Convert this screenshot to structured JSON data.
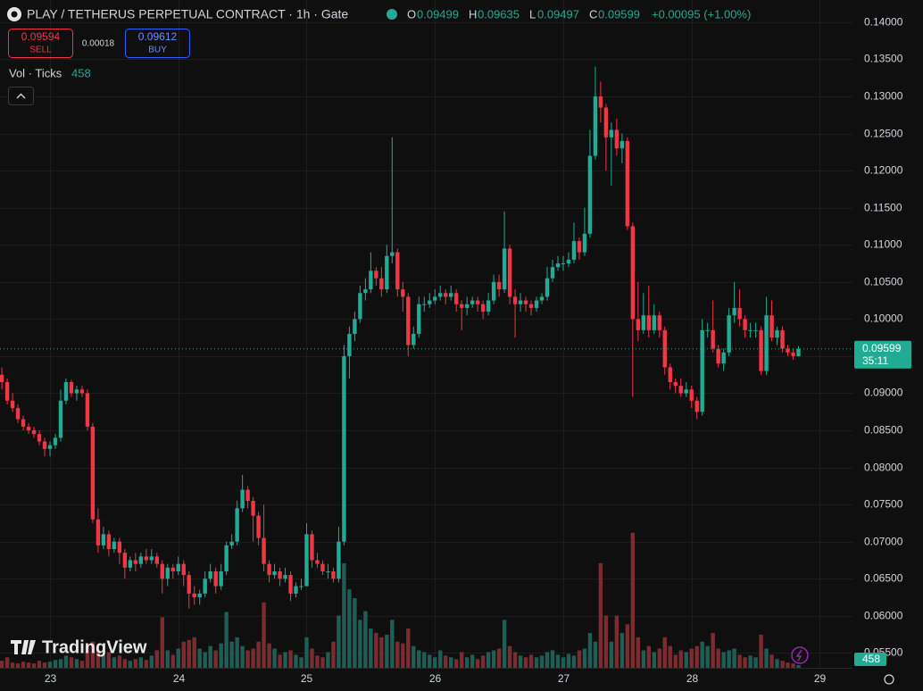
{
  "chart_data": {
    "type": "candlestick",
    "title": "PLAY / TETHERUS PERPETUAL CONTRACT · 1h · Gate",
    "legend_labels": [
      "O",
      "H",
      "L",
      "C"
    ],
    "change": "+0.00095 (+1.00%)",
    "countdown": "35:11",
    "up_color": "#22ab94",
    "down_color": "#f23645",
    "volume_up_color": "#1f5e55",
    "volume_down_color": "#7c2c31",
    "grid": true,
    "xlim": [
      14.65,
      174.1
    ],
    "xticks": [
      {
        "value": 24,
        "label": "23"
      },
      {
        "value": 48,
        "label": "24"
      },
      {
        "value": 72,
        "label": "25"
      },
      {
        "value": 96,
        "label": "26"
      },
      {
        "value": 120,
        "label": "27"
      },
      {
        "value": 144,
        "label": "28"
      },
      {
        "value": 168,
        "label": "29"
      }
    ],
    "ylim": [
      0.053,
      0.143
    ],
    "yticks": [
      {
        "value": 0.055,
        "label": "0.05500"
      },
      {
        "value": 0.06,
        "label": "0.06000"
      },
      {
        "value": 0.065,
        "label": "0.06500"
      },
      {
        "value": 0.07,
        "label": "0.07000"
      },
      {
        "value": 0.075,
        "label": "0.07500"
      },
      {
        "value": 0.08,
        "label": "0.08000"
      },
      {
        "value": 0.085,
        "label": "0.08500"
      },
      {
        "value": 0.09,
        "label": "0.09000"
      },
      {
        "value": 0.095,
        "label": "0.09500"
      },
      {
        "value": 0.1,
        "label": "0.10000"
      },
      {
        "value": 0.105,
        "label": "0.10500"
      },
      {
        "value": 0.11,
        "label": "0.11000"
      },
      {
        "value": 0.115,
        "label": "0.11500"
      },
      {
        "value": 0.12,
        "label": "0.12000"
      },
      {
        "value": 0.125,
        "label": "0.12500"
      },
      {
        "value": 0.13,
        "label": "0.13000"
      },
      {
        "value": 0.135,
        "label": "0.13500"
      },
      {
        "value": 0.14,
        "label": "0.14000"
      }
    ],
    "y2lim": [
      0,
      115000
    ],
    "x": [
      15,
      16,
      17,
      18,
      19,
      20,
      21,
      22,
      23,
      24,
      25,
      26,
      27,
      28,
      29,
      30,
      31,
      32,
      33,
      34,
      35,
      36,
      37,
      38,
      39,
      40,
      41,
      42,
      43,
      44,
      45,
      46,
      47,
      48,
      49,
      50,
      51,
      52,
      53,
      54,
      55,
      56,
      57,
      58,
      59,
      60,
      61,
      62,
      63,
      64,
      65,
      66,
      67,
      68,
      69,
      70,
      71,
      72,
      73,
      74,
      75,
      76,
      77,
      78,
      79,
      80,
      81,
      82,
      83,
      84,
      85,
      86,
      87,
      88,
      89,
      90,
      91,
      92,
      93,
      94,
      95,
      96,
      97,
      98,
      99,
      100,
      101,
      102,
      103,
      104,
      105,
      106,
      107,
      108,
      109,
      110,
      111,
      112,
      113,
      114,
      115,
      116,
      117,
      118,
      119,
      120,
      121,
      122,
      123,
      124,
      125,
      126,
      127,
      128,
      129,
      130,
      131,
      132,
      133,
      134,
      135,
      136,
      137,
      138,
      139,
      140,
      141,
      142,
      143,
      144,
      145,
      146,
      147,
      148,
      149,
      150,
      151,
      152,
      153,
      154,
      155,
      156,
      157,
      158,
      159,
      160,
      161,
      162,
      163,
      164
    ],
    "open": [
      0.0925,
      0.0915,
      0.089,
      0.088,
      0.0865,
      0.0855,
      0.085,
      0.0845,
      0.0835,
      0.0825,
      0.083,
      0.084,
      0.089,
      0.0915,
      0.09,
      0.0905,
      0.09,
      0.0855,
      0.073,
      0.0695,
      0.071,
      0.069,
      0.07,
      0.0685,
      0.0665,
      0.0675,
      0.067,
      0.068,
      0.0675,
      0.068,
      0.067,
      0.065,
      0.0665,
      0.066,
      0.067,
      0.0655,
      0.063,
      0.0625,
      0.063,
      0.065,
      0.066,
      0.064,
      0.066,
      0.0695,
      0.07,
      0.0745,
      0.077,
      0.0755,
      0.0735,
      0.0705,
      0.067,
      0.0655,
      0.066,
      0.065,
      0.0655,
      0.063,
      0.064,
      0.064,
      0.071,
      0.0675,
      0.067,
      0.066,
      0.066,
      0.065,
      0.07,
      0.095,
      0.098,
      0.1,
      0.1035,
      0.104,
      0.1065,
      0.1055,
      0.104,
      0.1085,
      0.109,
      0.104,
      0.103,
      0.0965,
      0.098,
      0.102,
      0.102,
      0.1025,
      0.103,
      0.1035,
      0.103,
      0.1035,
      0.102,
      0.1015,
      0.102,
      0.1025,
      0.102,
      0.101,
      0.1025,
      0.105,
      0.104,
      0.1095,
      0.103,
      0.102,
      0.1025,
      0.102,
      0.1015,
      0.1025,
      0.103,
      0.1055,
      0.107,
      0.1075,
      0.1075,
      0.108,
      0.1105,
      0.109,
      0.1115,
      0.122,
      0.13,
      0.1285,
      0.1245,
      0.1255,
      0.123,
      0.124,
      0.1125,
      0.1,
      0.0985,
      0.1005,
      0.0985,
      0.1005,
      0.0985,
      0.0935,
      0.0915,
      0.091,
      0.09,
      0.0905,
      0.089,
      0.0875,
      0.0985,
      0.0985,
      0.096,
      0.094,
      0.0955,
      0.1005,
      0.1015,
      0.1,
      0.0985,
      0.0985,
      0.0985,
      0.093,
      0.1005,
      0.0975,
      0.0985,
      0.096,
      0.0955,
      0.09499
    ],
    "high": [
      0.0935,
      0.092,
      0.09,
      0.0885,
      0.087,
      0.086,
      0.0855,
      0.085,
      0.084,
      0.0835,
      0.0845,
      0.0905,
      0.092,
      0.0918,
      0.091,
      0.091,
      0.0905,
      0.086,
      0.0745,
      0.072,
      0.0715,
      0.0705,
      0.0705,
      0.069,
      0.068,
      0.0685,
      0.0685,
      0.069,
      0.069,
      0.0685,
      0.0675,
      0.067,
      0.067,
      0.068,
      0.0675,
      0.066,
      0.064,
      0.0635,
      0.066,
      0.067,
      0.0665,
      0.067,
      0.07,
      0.071,
      0.0755,
      0.079,
      0.0775,
      0.076,
      0.074,
      0.075,
      0.0675,
      0.067,
      0.0665,
      0.0665,
      0.066,
      0.0645,
      0.065,
      0.0725,
      0.0715,
      0.0685,
      0.0675,
      0.067,
      0.0665,
      0.072,
      0.0965,
      0.099,
      0.101,
      0.1045,
      0.1055,
      0.109,
      0.107,
      0.107,
      0.11,
      0.1245,
      0.1095,
      0.105,
      0.1035,
      0.099,
      0.103,
      0.103,
      0.1035,
      0.104,
      0.1045,
      0.104,
      0.1045,
      0.104,
      0.1025,
      0.103,
      0.103,
      0.103,
      0.1025,
      0.1035,
      0.106,
      0.106,
      0.1145,
      0.11,
      0.104,
      0.1035,
      0.103,
      0.1025,
      0.103,
      0.1035,
      0.107,
      0.108,
      0.1085,
      0.1085,
      0.109,
      0.113,
      0.111,
      0.115,
      0.1255,
      0.134,
      0.132,
      0.129,
      0.1265,
      0.127,
      0.125,
      0.1245,
      0.113,
      0.105,
      0.1035,
      0.1045,
      0.102,
      0.101,
      0.099,
      0.094,
      0.092,
      0.092,
      0.0915,
      0.091,
      0.0895,
      0.1,
      0.0995,
      0.1025,
      0.0965,
      0.096,
      0.1015,
      0.105,
      0.104,
      0.1005,
      0.0995,
      0.0995,
      0.099,
      0.103,
      0.1025,
      0.099,
      0.099,
      0.0965,
      0.096,
      0.09635
    ],
    "low": [
      0.0905,
      0.0885,
      0.0875,
      0.086,
      0.085,
      0.0845,
      0.084,
      0.083,
      0.0815,
      0.0815,
      0.0825,
      0.0835,
      0.0885,
      0.0895,
      0.089,
      0.0895,
      0.085,
      0.0725,
      0.0685,
      0.069,
      0.068,
      0.0685,
      0.067,
      0.065,
      0.066,
      0.066,
      0.0665,
      0.067,
      0.067,
      0.0665,
      0.063,
      0.064,
      0.065,
      0.0655,
      0.064,
      0.061,
      0.0615,
      0.0615,
      0.0625,
      0.0645,
      0.063,
      0.0635,
      0.0655,
      0.069,
      0.0695,
      0.074,
      0.0745,
      0.07,
      0.0695,
      0.066,
      0.0645,
      0.065,
      0.064,
      0.0645,
      0.062,
      0.0625,
      0.0635,
      0.064,
      0.0665,
      0.0665,
      0.0655,
      0.065,
      0.0645,
      0.0645,
      0.0695,
      0.092,
      0.097,
      0.0995,
      0.1025,
      0.1035,
      0.1045,
      0.103,
      0.1035,
      0.1075,
      0.103,
      0.101,
      0.095,
      0.096,
      0.0975,
      0.101,
      0.1015,
      0.102,
      0.1025,
      0.102,
      0.1025,
      0.101,
      0.0985,
      0.1005,
      0.1015,
      0.101,
      0.1,
      0.1005,
      0.102,
      0.103,
      0.1035,
      0.102,
      0.0975,
      0.101,
      0.101,
      0.1005,
      0.101,
      0.102,
      0.1025,
      0.105,
      0.1065,
      0.1065,
      0.107,
      0.1075,
      0.108,
      0.1085,
      0.111,
      0.1215,
      0.1265,
      0.12,
      0.118,
      0.122,
      0.121,
      0.112,
      0.0895,
      0.097,
      0.098,
      0.0975,
      0.098,
      0.0975,
      0.0925,
      0.0905,
      0.09,
      0.0895,
      0.0895,
      0.088,
      0.0865,
      0.087,
      0.0975,
      0.0955,
      0.0935,
      0.093,
      0.095,
      0.0995,
      0.099,
      0.0975,
      0.0975,
      0.0975,
      0.0925,
      0.0925,
      0.097,
      0.0965,
      0.0955,
      0.095,
      0.0945,
      0.09497
    ],
    "close": [
      0.0915,
      0.089,
      0.088,
      0.0865,
      0.0855,
      0.085,
      0.0845,
      0.0835,
      0.0825,
      0.083,
      0.084,
      0.089,
      0.0915,
      0.09,
      0.0905,
      0.09,
      0.0855,
      0.073,
      0.0695,
      0.071,
      0.069,
      0.07,
      0.0685,
      0.0665,
      0.0675,
      0.067,
      0.068,
      0.0675,
      0.068,
      0.067,
      0.065,
      0.0665,
      0.066,
      0.067,
      0.0655,
      0.063,
      0.0625,
      0.063,
      0.065,
      0.066,
      0.064,
      0.066,
      0.0695,
      0.07,
      0.0745,
      0.077,
      0.0755,
      0.0735,
      0.0705,
      0.067,
      0.0655,
      0.066,
      0.065,
      0.0655,
      0.063,
      0.064,
      0.064,
      0.071,
      0.0675,
      0.067,
      0.066,
      0.066,
      0.065,
      0.07,
      0.095,
      0.098,
      0.1,
      0.1035,
      0.104,
      0.1065,
      0.1055,
      0.104,
      0.1085,
      0.109,
      0.104,
      0.103,
      0.0965,
      0.098,
      0.102,
      0.102,
      0.1025,
      0.103,
      0.1035,
      0.103,
      0.1035,
      0.102,
      0.1015,
      0.102,
      0.1025,
      0.102,
      0.101,
      0.1025,
      0.105,
      0.104,
      0.1095,
      0.103,
      0.102,
      0.1025,
      0.102,
      0.1015,
      0.1025,
      0.103,
      0.1055,
      0.107,
      0.1075,
      0.1075,
      0.108,
      0.1105,
      0.109,
      0.1115,
      0.122,
      0.13,
      0.1285,
      0.1245,
      0.1255,
      0.123,
      0.124,
      0.1125,
      0.1,
      0.0985,
      0.1005,
      0.0985,
      0.1005,
      0.0985,
      0.0935,
      0.0915,
      0.091,
      0.09,
      0.0905,
      0.089,
      0.0875,
      0.0985,
      0.0985,
      0.096,
      0.094,
      0.0955,
      0.1005,
      0.1015,
      0.1,
      0.0985,
      0.0985,
      0.0985,
      0.093,
      0.1005,
      0.0975,
      0.0985,
      0.096,
      0.0955,
      0.095,
      0.09599
    ],
    "volume": [
      1200,
      1800,
      900,
      750,
      1050,
      900,
      750,
      1200,
      900,
      1050,
      1350,
      1500,
      2100,
      1800,
      1500,
      1200,
      3750,
      4500,
      3000,
      2250,
      2700,
      1800,
      2100,
      1500,
      1200,
      1500,
      1800,
      1350,
      2100,
      3000,
      8700,
      3000,
      2250,
      3300,
      4500,
      4800,
      5250,
      3300,
      2700,
      3750,
      3000,
      4200,
      9600,
      4500,
      5250,
      3750,
      3000,
      3300,
      4500,
      11250,
      4200,
      3300,
      2250,
      2700,
      3000,
      2250,
      1800,
      5250,
      3300,
      2100,
      1800,
      2700,
      4500,
      9000,
      18000,
      13500,
      12000,
      8250,
      9750,
      6750,
      6000,
      5250,
      5700,
      8250,
      4500,
      4200,
      6750,
      3750,
      3000,
      2700,
      2250,
      1800,
      3000,
      2100,
      1800,
      1500,
      2700,
      1800,
      2250,
      1500,
      2100,
      2700,
      3000,
      3300,
      8250,
      3750,
      2700,
      2100,
      1800,
      2250,
      1800,
      2100,
      2700,
      3000,
      2250,
      1800,
      2400,
      2100,
      3000,
      3300,
      6000,
      4500,
      18000,
      9000,
      4500,
      9000,
      6000,
      7500,
      23250,
      5250,
      3000,
      3750,
      2700,
      3300,
      5250,
      3750,
      2250,
      3000,
      2700,
      3300,
      3750,
      4500,
      3750,
      6000,
      3300,
      2700,
      3000,
      3300,
      2250,
      1800,
      2100,
      1800,
      5700,
      3300,
      2250,
      1500,
      1200,
      900,
      750,
      458
    ]
  },
  "toolbar": {
    "sell_price": 0.09594,
    "sell_label": "SELL",
    "spread": 0.00018,
    "buy_price": 0.09612,
    "buy_label": "BUY",
    "indicator": "Vol · Ticks"
  },
  "watermark": "TradingView"
}
